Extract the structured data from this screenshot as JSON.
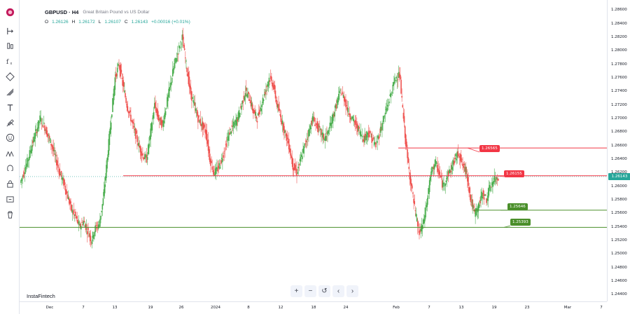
{
  "legend": {
    "symbol": "GBPUSD · H4",
    "description": "Great Britain Pound vs US Dollar",
    "o_label": "O",
    "o_value": "1.26126",
    "h_label": "H",
    "h_value": "1.26172",
    "l_label": "L",
    "l_value": "1.26107",
    "c_label": "C",
    "c_value": "1.26143",
    "change": "+0.00016 (+0.01%)"
  },
  "watermark": "InstaFintech",
  "toolbar": {
    "icons": [
      "crosshair-icon",
      "trend-line-icon",
      "fib-icon",
      "pattern-icon",
      "brush-icon",
      "text-icon",
      "prediction-icon",
      "emoji-icon",
      "measure-icon",
      "zoom-icon",
      "magnet-icon",
      "lock-icon",
      "trash-icon"
    ]
  },
  "price_axis": {
    "ticks": [
      "1.28600",
      "1.28400",
      "1.28200",
      "1.28000",
      "1.27800",
      "1.27600",
      "1.27400",
      "1.27200",
      "1.27000",
      "1.26800",
      "1.26600",
      "1.26400",
      "1.26200",
      "1.26000",
      "1.25800",
      "1.25600",
      "1.25400",
      "1.25200",
      "1.25000",
      "1.24800",
      "1.24600",
      "1.24400"
    ],
    "current_price": "1.26143",
    "current_color": "#26a69a"
  },
  "time_axis": {
    "labels": [
      "Dec",
      "7",
      "13",
      "19",
      "26",
      "2024",
      "8",
      "12",
      "18",
      "24",
      "Feb",
      "7",
      "13",
      "19",
      "23",
      "Mar",
      "7"
    ]
  },
  "levels": {
    "resistance_1": "1.26565",
    "resistance_2": "1.26155",
    "support_1": "1.25646",
    "support_2": "1.25393"
  },
  "colors": {
    "up": "#26a69a",
    "down": "#ef5350",
    "up_candle": "#4caf50",
    "resistance": "#f23645",
    "support": "#4a8f2a",
    "current_line": "#ef5350"
  },
  "nav": {
    "zoom_in": "+",
    "zoom_out": "−",
    "reset": "↺",
    "prev": "‹",
    "next": "›"
  },
  "chart_data": {
    "type": "candlestick",
    "symbol": "GBPUSD",
    "timeframe": "H4",
    "ylim": [
      1.243,
      1.2875
    ],
    "x": [
      "Dec",
      "7",
      "13",
      "19",
      "26",
      "2024",
      "8",
      "12",
      "18",
      "24",
      "Feb",
      "7",
      "13",
      "19",
      "23",
      "Mar",
      "7"
    ],
    "series": [
      {
        "name": "GBPUSD",
        "close_path": [
          1.2605,
          1.2622,
          1.264,
          1.2662,
          1.268,
          1.27,
          1.269,
          1.2675,
          1.266,
          1.264,
          1.262,
          1.2605,
          1.2585,
          1.2565,
          1.2555,
          1.254,
          1.2548,
          1.2535,
          1.252,
          1.2538,
          1.2545,
          1.258,
          1.264,
          1.27,
          1.276,
          1.278,
          1.275,
          1.272,
          1.27,
          1.268,
          1.266,
          1.2645,
          1.264,
          1.268,
          1.272,
          1.27,
          1.269,
          1.272,
          1.275,
          1.278,
          1.28,
          1.282,
          1.278,
          1.274,
          1.272,
          1.27,
          1.269,
          1.268,
          1.264,
          1.262,
          1.2625,
          1.264,
          1.266,
          1.268,
          1.269,
          1.27,
          1.272,
          1.274,
          1.273,
          1.271,
          1.27,
          1.272,
          1.274,
          1.276,
          1.275,
          1.272,
          1.27,
          1.268,
          1.266,
          1.263,
          1.262,
          1.264,
          1.266,
          1.268,
          1.27,
          1.269,
          1.268,
          1.267,
          1.268,
          1.27,
          1.272,
          1.274,
          1.273,
          1.271,
          1.27,
          1.269,
          1.268,
          1.267,
          1.268,
          1.267,
          1.266,
          1.268,
          1.27,
          1.272,
          1.274,
          1.276,
          1.2765,
          1.27,
          1.264,
          1.26,
          1.256,
          1.253,
          1.2545,
          1.258,
          1.262,
          1.2635,
          1.262,
          1.26,
          1.2615,
          1.2625,
          1.264,
          1.265,
          1.263,
          1.262,
          1.258,
          1.256,
          1.257,
          1.259,
          1.258,
          1.26,
          1.261,
          1.2614
        ]
      }
    ]
  }
}
